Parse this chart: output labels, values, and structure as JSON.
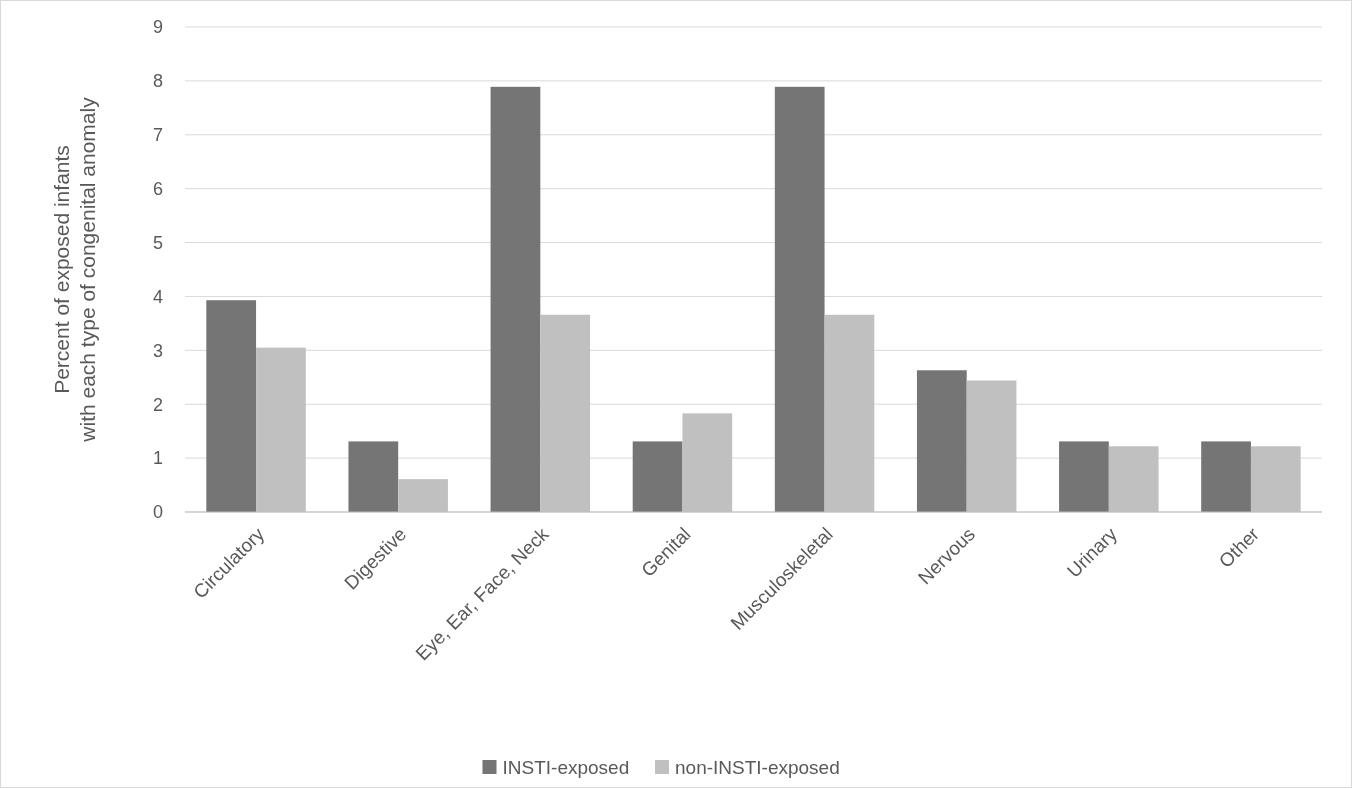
{
  "chart_data": {
    "type": "bar",
    "ylabel": "Percent of exposed infants\nwith each type of congenital anomaly",
    "categories": [
      "Circulatory",
      "Digestive",
      "Eye, Ear, Face, Neck",
      "Genital",
      "Musculoskeletal",
      "Nervous",
      "Urinary",
      "Other"
    ],
    "series": [
      {
        "name": "INSTI-exposed",
        "color": "#757575",
        "values": [
          3.93,
          1.31,
          7.89,
          1.31,
          7.89,
          2.63,
          1.31,
          1.31
        ]
      },
      {
        "name": "non-INSTI-exposed",
        "color": "#c0c0c0",
        "values": [
          3.05,
          0.61,
          3.66,
          1.83,
          3.66,
          2.44,
          1.22,
          1.22
        ]
      }
    ],
    "ylim": [
      0,
      9
    ],
    "yticks": [
      0,
      1,
      2,
      3,
      4,
      5,
      6,
      7,
      8,
      9
    ],
    "grid": "y",
    "legend": "bottom"
  }
}
